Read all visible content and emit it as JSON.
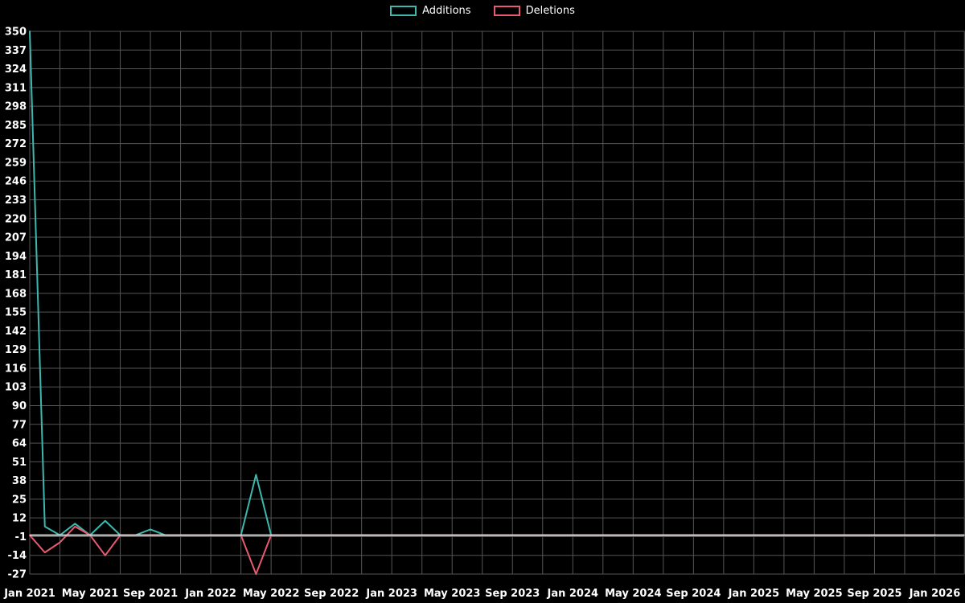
{
  "page": {
    "background": "#000000"
  },
  "legend": {
    "items": [
      {
        "label": "Additions",
        "color": "#3cb8ae"
      },
      {
        "label": "Deletions",
        "color": "#e75a70"
      }
    ]
  },
  "chart_data": {
    "type": "line",
    "title": "",
    "xlabel": "",
    "ylabel": "",
    "x_start_label": "Jan 2021",
    "x_interval": "month",
    "x_tick_labels": [
      "Jan 2021",
      "May 2021",
      "Sep 2021",
      "Jan 2022",
      "May 2022",
      "Sep 2022",
      "Jan 2023",
      "May 2023",
      "Sep 2023",
      "Jan 2024",
      "May 2024",
      "Sep 2024",
      "Jan 2025",
      "May 2025",
      "Sep 2025",
      "Jan 2026"
    ],
    "x_tick_every_months": 4,
    "y_ticks": [
      -27,
      -14,
      -1,
      12,
      25,
      38,
      51,
      64,
      77,
      90,
      103,
      116,
      129,
      142,
      155,
      168,
      181,
      194,
      207,
      220,
      233,
      246,
      259,
      272,
      285,
      298,
      311,
      324,
      337,
      350
    ],
    "ylim": [
      -27,
      350
    ],
    "grid": true,
    "legend_position": "top",
    "colors": {
      "background": "#000000",
      "grid": "#555555",
      "zero_axis": "#d9d9d9",
      "text": "#ffffff"
    },
    "series": [
      {
        "name": "Additions",
        "color": "#3cb8ae",
        "values": [
          350,
          6,
          0,
          8,
          0,
          10,
          0,
          0,
          4,
          0,
          0,
          0,
          0,
          0,
          0,
          42,
          0,
          0,
          0,
          0,
          0,
          0,
          0,
          0,
          0,
          0,
          0,
          0,
          0,
          0,
          0,
          0,
          0,
          0,
          0,
          0,
          0,
          0,
          0,
          0,
          0,
          0,
          0,
          0,
          0,
          0,
          0,
          0,
          0,
          0,
          0,
          0,
          0,
          0,
          0,
          0,
          0,
          0,
          0,
          0,
          0
        ]
      },
      {
        "name": "Deletions",
        "color": "#e75a70",
        "values": [
          0,
          -12,
          -5,
          6,
          0,
          -14,
          0,
          0,
          0,
          0,
          0,
          0,
          0,
          0,
          0,
          -27,
          0,
          0,
          0,
          0,
          0,
          0,
          0,
          0,
          0,
          0,
          0,
          0,
          0,
          0,
          0,
          0,
          0,
          0,
          0,
          0,
          0,
          0,
          0,
          0,
          0,
          0,
          0,
          0,
          0,
          0,
          0,
          0,
          0,
          0,
          0,
          0,
          0,
          0,
          0,
          0,
          0,
          0,
          0,
          0,
          0
        ]
      }
    ]
  }
}
